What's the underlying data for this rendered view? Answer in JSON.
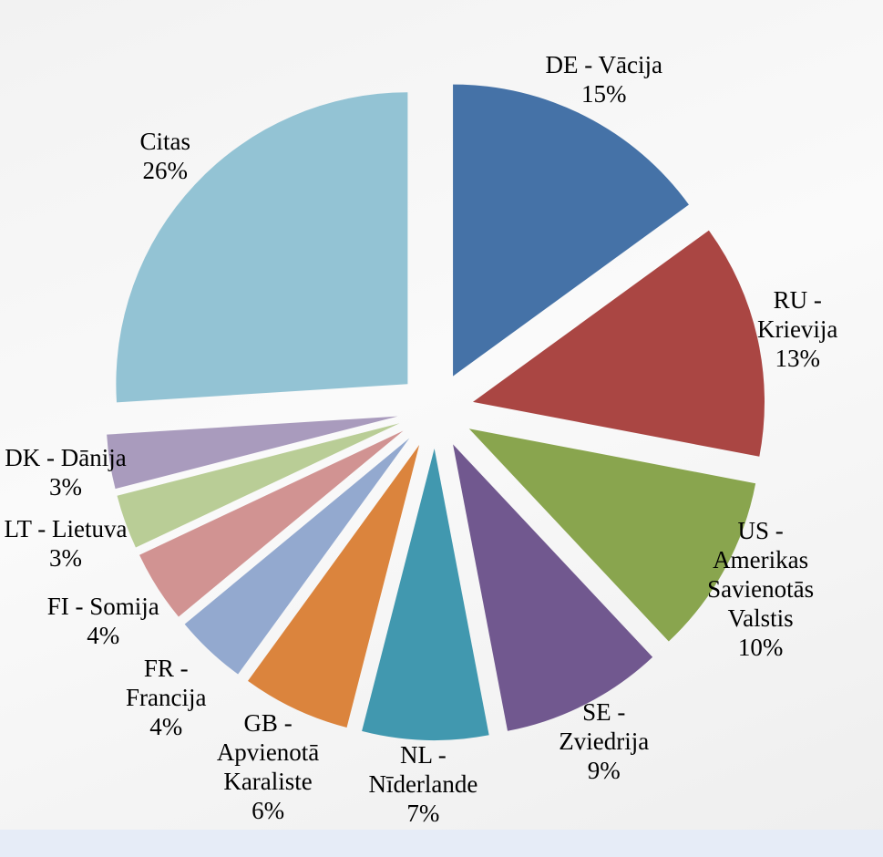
{
  "chart_data": {
    "type": "pie",
    "categories": [
      "DE - Vācija",
      "RU - Krievija",
      "US - Amerikas Savienotās Valstis",
      "SE - Zviedrija",
      "NL - Nīderlande",
      "GB - Apvienotā Karaliste",
      "FR - Francija",
      "FI - Somija",
      "LT - Lietuva",
      "DK - Dānija",
      "Citas"
    ],
    "values": [
      15,
      13,
      10,
      9,
      7,
      6,
      4,
      4,
      3,
      3,
      26
    ],
    "value_labels": [
      "15%",
      "13%",
      "10%",
      "9%",
      "7%",
      "6%",
      "4%",
      "4%",
      "3%",
      "3%",
      "26%"
    ],
    "colors": [
      "#4572a7",
      "#aa4643",
      "#89a54e",
      "#71588f",
      "#4198af",
      "#db843d",
      "#93a9cf",
      "#d19392",
      "#b9cd96",
      "#a99bbd",
      "#93c3d4"
    ]
  }
}
